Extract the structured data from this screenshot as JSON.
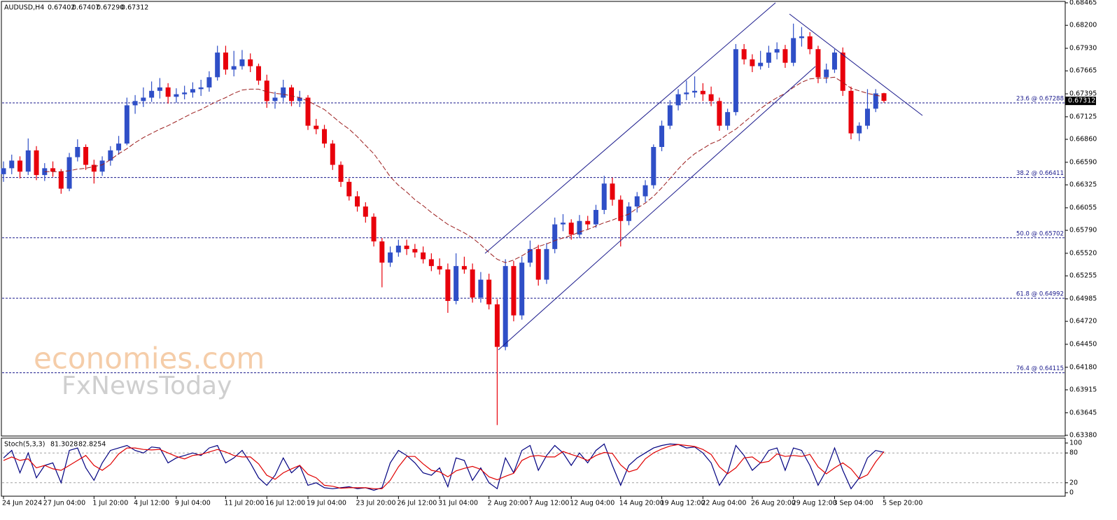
{
  "chart_data": [
    {
      "type": "candlestick",
      "title": "AUDUSD,H4",
      "last_bar_labels": [
        "0.67402",
        "0.67407",
        "0.67290",
        "0.67312"
      ],
      "categories": [
        "24 Jun 2024",
        null,
        null,
        null,
        null,
        "27 Jun 04:00",
        null,
        null,
        null,
        null,
        null,
        "1 Jul 20:00",
        null,
        null,
        null,
        null,
        "4 Jul 12:00",
        null,
        null,
        null,
        null,
        "9 Jul 04:00",
        null,
        null,
        null,
        null,
        null,
        "11 Jul 20:00",
        null,
        null,
        null,
        null,
        "16 Jul 12:00",
        null,
        null,
        null,
        null,
        "19 Jul 04:00",
        null,
        null,
        null,
        null,
        null,
        "23 Jul 20:00",
        null,
        null,
        null,
        null,
        "26 Jul 12:00",
        null,
        null,
        null,
        null,
        "31 Jul 04:00",
        null,
        null,
        null,
        null,
        null,
        "2 Aug 20:00",
        null,
        null,
        null,
        null,
        "7 Aug 12:00",
        null,
        null,
        null,
        null,
        "12 Aug 04:00",
        null,
        null,
        null,
        null,
        null,
        "14 Aug 20:00",
        null,
        null,
        null,
        null,
        "19 Aug 12:00",
        null,
        null,
        null,
        null,
        "22 Aug 04:00",
        null,
        null,
        null,
        null,
        null,
        "26 Aug 20:00",
        null,
        null,
        null,
        null,
        "29 Aug 12:00",
        null,
        null,
        null,
        null,
        "3 Sep 04:00",
        null,
        null,
        null,
        null,
        null,
        "5 Sep 20:00"
      ],
      "candles": [
        [
          0.6645,
          0.666,
          0.6636,
          0.6652
        ],
        [
          0.6652,
          0.6668,
          0.6645,
          0.6661
        ],
        [
          0.6661,
          0.6666,
          0.664,
          0.6648
        ],
        [
          0.6648,
          0.6687,
          0.6644,
          0.6673
        ],
        [
          0.6673,
          0.6678,
          0.6638,
          0.6644
        ],
        [
          0.6644,
          0.6658,
          0.6637,
          0.6652
        ],
        [
          0.6652,
          0.666,
          0.6642,
          0.6648
        ],
        [
          0.6648,
          0.6651,
          0.6622,
          0.6628
        ],
        [
          0.6628,
          0.667,
          0.6625,
          0.6665
        ],
        [
          0.6665,
          0.6686,
          0.666,
          0.6677
        ],
        [
          0.6677,
          0.668,
          0.665,
          0.6656
        ],
        [
          0.6656,
          0.6662,
          0.6634,
          0.6648
        ],
        [
          0.6648,
          0.6666,
          0.6643,
          0.6661
        ],
        [
          0.6661,
          0.6678,
          0.6655,
          0.6673
        ],
        [
          0.6673,
          0.669,
          0.6668,
          0.6681
        ],
        [
          0.6681,
          0.6735,
          0.6679,
          0.6726
        ],
        [
          0.6726,
          0.6738,
          0.6716,
          0.6731
        ],
        [
          0.6731,
          0.6747,
          0.6724,
          0.6735
        ],
        [
          0.6735,
          0.6754,
          0.673,
          0.6743
        ],
        [
          0.6743,
          0.6758,
          0.6734,
          0.6747
        ],
        [
          0.6747,
          0.6752,
          0.6728,
          0.6736
        ],
        [
          0.6736,
          0.6746,
          0.6729,
          0.6739
        ],
        [
          0.6739,
          0.6749,
          0.6733,
          0.6741
        ],
        [
          0.6741,
          0.6753,
          0.6735,
          0.6745
        ],
        [
          0.6745,
          0.6756,
          0.6737,
          0.6747
        ],
        [
          0.6747,
          0.6766,
          0.6742,
          0.6759
        ],
        [
          0.6759,
          0.6796,
          0.6755,
          0.6788
        ],
        [
          0.6788,
          0.6796,
          0.6762,
          0.6768
        ],
        [
          0.6768,
          0.679,
          0.676,
          0.6772
        ],
        [
          0.6772,
          0.6791,
          0.6768,
          0.678
        ],
        [
          0.678,
          0.6787,
          0.6765,
          0.6772
        ],
        [
          0.6772,
          0.6775,
          0.675,
          0.6755
        ],
        [
          0.6755,
          0.6762,
          0.6723,
          0.6731
        ],
        [
          0.6731,
          0.6742,
          0.6722,
          0.6735
        ],
        [
          0.6735,
          0.6756,
          0.673,
          0.6747
        ],
        [
          0.6747,
          0.675,
          0.6725,
          0.6731
        ],
        [
          0.6731,
          0.6743,
          0.6724,
          0.6735
        ],
        [
          0.6735,
          0.6738,
          0.6697,
          0.6702
        ],
        [
          0.6702,
          0.671,
          0.6692,
          0.6698
        ],
        [
          0.6698,
          0.6703,
          0.6676,
          0.6681
        ],
        [
          0.6681,
          0.6685,
          0.665,
          0.6656
        ],
        [
          0.6656,
          0.666,
          0.663,
          0.6636
        ],
        [
          0.6636,
          0.664,
          0.6614,
          0.6619
        ],
        [
          0.6619,
          0.6625,
          0.6601,
          0.6607
        ],
        [
          0.6607,
          0.6612,
          0.6588,
          0.6595
        ],
        [
          0.6595,
          0.6599,
          0.656,
          0.6566
        ],
        [
          0.6566,
          0.657,
          0.6512,
          0.6541
        ],
        [
          0.6541,
          0.656,
          0.6536,
          0.6553
        ],
        [
          0.6553,
          0.6568,
          0.6548,
          0.6561
        ],
        [
          0.6561,
          0.6568,
          0.655,
          0.6557
        ],
        [
          0.6557,
          0.6563,
          0.6547,
          0.6553
        ],
        [
          0.6553,
          0.656,
          0.654,
          0.6545
        ],
        [
          0.6545,
          0.6552,
          0.6531,
          0.6537
        ],
        [
          0.6537,
          0.6546,
          0.6527,
          0.6533
        ],
        [
          0.6533,
          0.654,
          0.6482,
          0.6496
        ],
        [
          0.6496,
          0.6552,
          0.6492,
          0.6537
        ],
        [
          0.6537,
          0.6548,
          0.6528,
          0.6533
        ],
        [
          0.6533,
          0.654,
          0.6494,
          0.65
        ],
        [
          0.65,
          0.653,
          0.6494,
          0.6521
        ],
        [
          0.6521,
          0.6528,
          0.6486,
          0.6492
        ],
        [
          0.6492,
          0.6498,
          0.635,
          0.6442
        ],
        [
          0.6442,
          0.6545,
          0.6438,
          0.6537
        ],
        [
          0.6537,
          0.6543,
          0.6472,
          0.6479
        ],
        [
          0.6479,
          0.6548,
          0.6474,
          0.6541
        ],
        [
          0.6541,
          0.6567,
          0.6536,
          0.6557
        ],
        [
          0.6557,
          0.6562,
          0.6514,
          0.6521
        ],
        [
          0.6521,
          0.6564,
          0.6516,
          0.6557
        ],
        [
          0.6557,
          0.6594,
          0.6552,
          0.6586
        ],
        [
          0.6586,
          0.6598,
          0.6578,
          0.6588
        ],
        [
          0.6588,
          0.6592,
          0.6568,
          0.6574
        ],
        [
          0.6574,
          0.6597,
          0.657,
          0.659
        ],
        [
          0.659,
          0.6596,
          0.658,
          0.6586
        ],
        [
          0.6586,
          0.6609,
          0.6582,
          0.6603
        ],
        [
          0.6603,
          0.6643,
          0.6598,
          0.6634
        ],
        [
          0.6634,
          0.6641,
          0.6608,
          0.6615
        ],
        [
          0.6615,
          0.662,
          0.656,
          0.659
        ],
        [
          0.659,
          0.6612,
          0.6585,
          0.6607
        ],
        [
          0.6607,
          0.6624,
          0.66,
          0.6619
        ],
        [
          0.6619,
          0.6638,
          0.6612,
          0.6632
        ],
        [
          0.6632,
          0.668,
          0.6628,
          0.6677
        ],
        [
          0.6677,
          0.6708,
          0.6672,
          0.6702
        ],
        [
          0.6702,
          0.6732,
          0.6698,
          0.6726
        ],
        [
          0.6726,
          0.6745,
          0.672,
          0.6739
        ],
        [
          0.6739,
          0.6755,
          0.6732,
          0.6741
        ],
        [
          0.6741,
          0.676,
          0.6735,
          0.6743
        ],
        [
          0.6743,
          0.6752,
          0.6731,
          0.6739
        ],
        [
          0.6739,
          0.6748,
          0.6725,
          0.6731
        ],
        [
          0.6731,
          0.6735,
          0.6696,
          0.6702
        ],
        [
          0.6702,
          0.6722,
          0.6697,
          0.6718
        ],
        [
          0.6718,
          0.6798,
          0.6714,
          0.6792
        ],
        [
          0.6792,
          0.6798,
          0.6774,
          0.678
        ],
        [
          0.678,
          0.6786,
          0.6765,
          0.6772
        ],
        [
          0.6772,
          0.679,
          0.6768,
          0.6776
        ],
        [
          0.6776,
          0.6796,
          0.677,
          0.6788
        ],
        [
          0.6788,
          0.68,
          0.678,
          0.6792
        ],
        [
          0.6792,
          0.6797,
          0.677,
          0.6776
        ],
        [
          0.6776,
          0.6822,
          0.6772,
          0.6805
        ],
        [
          0.6805,
          0.6818,
          0.6795,
          0.6807
        ],
        [
          0.6807,
          0.6812,
          0.6786,
          0.6792
        ],
        [
          0.6792,
          0.6796,
          0.6752,
          0.6759
        ],
        [
          0.6759,
          0.6775,
          0.6752,
          0.6768
        ],
        [
          0.6768,
          0.6792,
          0.6764,
          0.6788
        ],
        [
          0.6788,
          0.6794,
          0.6737,
          0.6743
        ],
        [
          0.6743,
          0.6748,
          0.6686,
          0.6693
        ],
        [
          0.6693,
          0.6706,
          0.6684,
          0.6702
        ],
        [
          0.6702,
          0.6745,
          0.6698,
          0.6722
        ],
        [
          0.6722,
          0.6745,
          0.6718,
          0.674
        ],
        [
          0.67402,
          0.67407,
          0.6729,
          0.67312
        ]
      ],
      "up_color": "#2f4fc7",
      "down_color": "#e8000b",
      "ma": {
        "color": "#9b1c1c",
        "values": [
          null,
          null,
          null,
          null,
          null,
          0.6648,
          0.6648,
          0.6648,
          0.6649,
          0.6651,
          0.6652,
          0.6654,
          0.6656,
          0.6662,
          0.6669,
          0.6675,
          0.6682,
          0.6688,
          0.6693,
          0.6698,
          0.6702,
          0.6707,
          0.6712,
          0.6717,
          0.6721,
          0.6726,
          0.6731,
          0.6735,
          0.674,
          0.6744,
          0.6745,
          0.6745,
          0.6742,
          0.674,
          0.6739,
          0.6737,
          0.6735,
          0.6731,
          0.6726,
          0.6721,
          0.6713,
          0.6705,
          0.6698,
          0.6689,
          0.6679,
          0.6669,
          0.6656,
          0.6642,
          0.6632,
          0.6624,
          0.6615,
          0.6608,
          0.66,
          0.6593,
          0.6586,
          0.6581,
          0.6576,
          0.657,
          0.6562,
          0.6553,
          0.6545,
          0.6541,
          0.6544,
          0.6549,
          0.6555,
          0.656,
          0.6563,
          0.6567,
          0.657,
          0.6573,
          0.6577,
          0.658,
          0.6584,
          0.6588,
          0.6591,
          0.6595,
          0.6598,
          0.6605,
          0.6611,
          0.6619,
          0.6629,
          0.664,
          0.6651,
          0.6661,
          0.6669,
          0.6675,
          0.6681,
          0.6685,
          0.6692,
          0.6698,
          0.6706,
          0.6714,
          0.6722,
          0.6729,
          0.6735,
          0.674,
          0.6747,
          0.6753,
          0.6757,
          0.6758,
          0.6758,
          0.6759,
          0.6753,
          0.6746,
          0.6743,
          0.674,
          0.6738,
          0.6736
        ]
      },
      "ylim": [
        0.6338,
        0.68465
      ],
      "yticks": [
        0.68465,
        {
          "value": 0.682,
          "label": "0.68200"
        },
        {
          "value": 0.6793,
          "label": "0.67930"
        },
        0.67665,
        0.67395,
        0.67125,
        {
          "value": 0.6686,
          "label": "0.66860"
        },
        {
          "value": 0.6659,
          "label": "0.66590"
        },
        0.66325,
        0.66055,
        {
          "value": 0.6579,
          "label": "0.65790"
        },
        {
          "value": 0.6552,
          "label": "0.65520"
        },
        0.65255,
        0.64985,
        {
          "value": 0.6472,
          "label": "0.64720"
        },
        {
          "value": 0.6445,
          "label": "0.64450"
        },
        {
          "value": 0.6418,
          "label": "0.64180"
        },
        0.63915,
        0.63645,
        {
          "value": 0.6338,
          "label": "0.63380"
        }
      ],
      "fib_levels": [
        {
          "value": 0.67288,
          "label": "23.6 @ 0.67288"
        },
        {
          "value": 0.66411,
          "label": "38.2 @ 0.66411"
        },
        {
          "value": 0.65702,
          "label": "50.0 @ 0.65702"
        },
        {
          "value": 0.64992,
          "label": "61.8 @ 0.64992"
        },
        {
          "value": 0.64115,
          "label": "76.4 @ 0.64115"
        }
      ],
      "fib_color": "#1a1a8c",
      "last_price": 0.67312,
      "watermark": [
        "economies.com",
        "FxNewsToday"
      ]
    },
    {
      "type": "line",
      "title": "Stoch(5,3,3)",
      "series": [
        {
          "color": "#000080",
          "values": [
            70,
            85,
            40,
            80,
            30,
            55,
            60,
            20,
            85,
            90,
            50,
            25,
            60,
            85,
            90,
            95,
            85,
            80,
            92,
            90,
            60,
            70,
            75,
            80,
            75,
            90,
            95,
            60,
            70,
            85,
            60,
            30,
            15,
            35,
            70,
            40,
            55,
            15,
            20,
            10,
            8,
            10,
            12,
            8,
            10,
            5,
            10,
            60,
            85,
            75,
            60,
            40,
            35,
            50,
            12,
            70,
            65,
            25,
            50,
            20,
            8,
            70,
            40,
            85,
            95,
            45,
            75,
            95,
            80,
            55,
            80,
            60,
            85,
            98,
            55,
            15,
            55,
            70,
            80,
            90,
            95,
            98,
            97,
            90,
            92,
            80,
            60,
            15,
            40,
            95,
            75,
            45,
            60,
            85,
            90,
            45,
            90,
            85,
            55,
            15,
            45,
            90,
            45,
            8,
            30,
            70,
            85,
            81.3028
          ]
        },
        {
          "color": "#e00000",
          "values": [
            65,
            72,
            65,
            68,
            50,
            55,
            48,
            45,
            55,
            65,
            75,
            55,
            45,
            57,
            78,
            90,
            90,
            87,
            86,
            87,
            80,
            73,
            68,
            75,
            77,
            82,
            87,
            82,
            75,
            72,
            72,
            58,
            35,
            27,
            40,
            48,
            55,
            37,
            30,
            15,
            13,
            9,
            10,
            10,
            10,
            8,
            8,
            25,
            52,
            73,
            73,
            58,
            45,
            42,
            32,
            44,
            49,
            53,
            47,
            32,
            26,
            33,
            39,
            65,
            73,
            75,
            72,
            72,
            83,
            77,
            72,
            65,
            75,
            81,
            79,
            56,
            42,
            47,
            68,
            80,
            88,
            94,
            97,
            95,
            93,
            87,
            77,
            52,
            38,
            50,
            70,
            72,
            60,
            63,
            78,
            73,
            75,
            73,
            77,
            52,
            38,
            50,
            60,
            48,
            28,
            36,
            62,
            82.8254
          ]
        }
      ],
      "ylim": [
        0,
        100
      ],
      "yticks": [
        0,
        20,
        80,
        100
      ],
      "levels": [
        20,
        80
      ]
    }
  ]
}
